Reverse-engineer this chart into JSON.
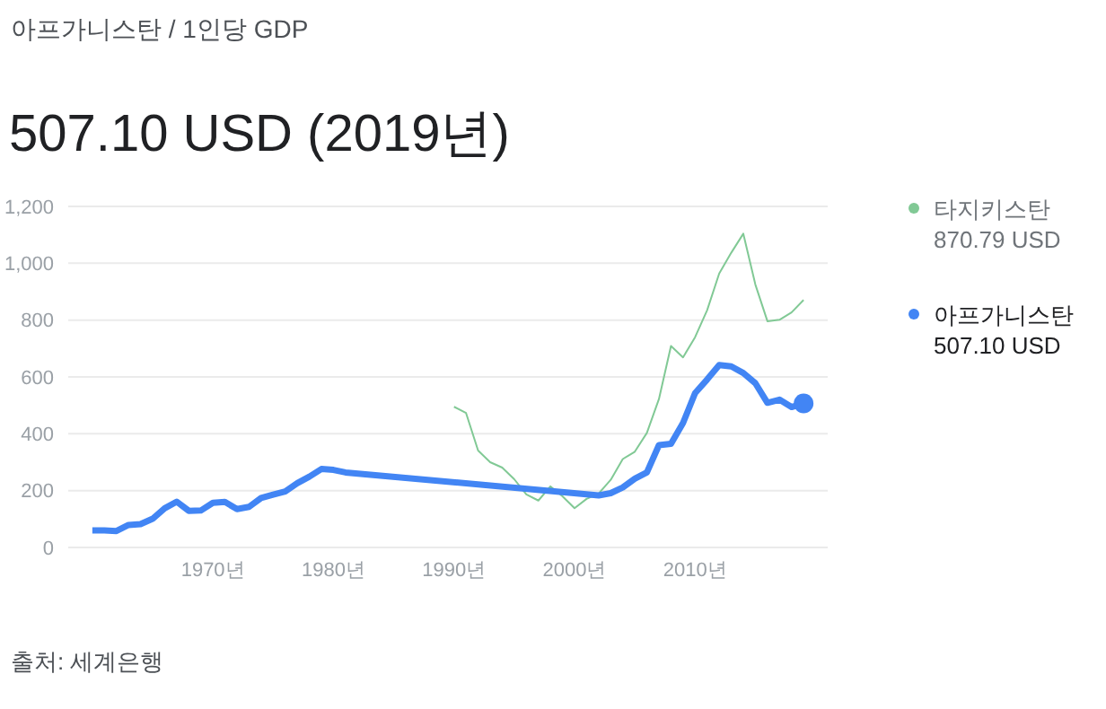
{
  "chart_data": {
    "type": "line",
    "subtitle": "아프가니스탄 / 1인당 GDP",
    "title": "507.10 USD (2019년)",
    "xlim": [
      1958,
      2021
    ],
    "xticks": [
      {
        "value": 1970,
        "label": "1970년"
      },
      {
        "value": 1980,
        "label": "1980년"
      },
      {
        "value": 1990,
        "label": "1990년"
      },
      {
        "value": 2000,
        "label": "2000년"
      },
      {
        "value": 2010,
        "label": "2010년"
      }
    ],
    "ylim": [
      0,
      1200
    ],
    "yticks": [
      0,
      {
        "value": 200,
        "label": "200"
      },
      400,
      600,
      800,
      {
        "value": 1000,
        "label": "1,000"
      },
      {
        "value": 1200,
        "label": "1,200"
      }
    ],
    "grid": "y",
    "legend": "right",
    "series": [
      {
        "name": "타지키스탄",
        "color": "#81c995",
        "x": [
          1990,
          1991,
          1992,
          1993,
          1994,
          1995,
          1996,
          1997,
          1998,
          1999,
          2000,
          2001,
          2002,
          2003,
          2004,
          2005,
          2006,
          2007,
          2008,
          2009,
          2010,
          2011,
          2012,
          2013,
          2014,
          2015,
          2016,
          2017,
          2018,
          2019
        ],
        "values": [
          495,
          473,
          341,
          300,
          281,
          240,
          187,
          165,
          215,
          180,
          138,
          171,
          190,
          238,
          311,
          337,
          403,
          522,
          709,
          669,
          740,
          835,
          964,
          1037,
          1104,
          925,
          796,
          801,
          827,
          870.79
        ]
      },
      {
        "name": "아프가니스탄",
        "color": "#4285f4",
        "x": [
          1960,
          1961,
          1962,
          1963,
          1964,
          1965,
          1966,
          1967,
          1968,
          1969,
          1970,
          1971,
          1972,
          1973,
          1974,
          1975,
          1976,
          1977,
          1978,
          1979,
          1980,
          1981,
          2002,
          2003,
          2004,
          2005,
          2006,
          2007,
          2008,
          2009,
          2010,
          2011,
          2012,
          2013,
          2014,
          2015,
          2016,
          2017,
          2018,
          2019
        ],
        "values": [
          60,
          60,
          58,
          79,
          82,
          101,
          138,
          161,
          129,
          130,
          157,
          160,
          135,
          143,
          174,
          186,
          197,
          226,
          249,
          276,
          273,
          264,
          183,
          191,
          211,
          242,
          264,
          360,
          365,
          438,
          543,
          591,
          642,
          637,
          614,
          578,
          509,
          520,
          494,
          507.1
        ]
      }
    ],
    "annotations": [
      "870.79 USD",
      "507.10 USD",
      "출처: 세계은행"
    ]
  }
}
